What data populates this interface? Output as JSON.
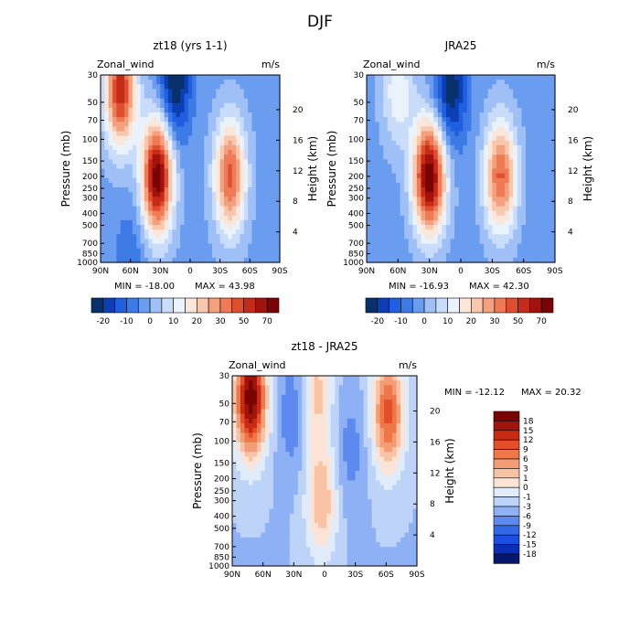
{
  "page": {
    "title": "DJF"
  },
  "colors": {
    "full_scale": [
      "#08306b",
      "#0b3fb3",
      "#1f5fe0",
      "#3d7ae6",
      "#6a9cf0",
      "#9fc0f6",
      "#c9dcfa",
      "#eaf2fc",
      "#fbe6da",
      "#f9c7ad",
      "#f5a07d",
      "#ef7a55",
      "#e04e30",
      "#c62a18",
      "#a3130d",
      "#7a0404"
    ],
    "diff_scale": [
      "#07166e",
      "#0a2fb5",
      "#1a4ee0",
      "#3168e8",
      "#5c8aef",
      "#8eb0f4",
      "#bed3f8",
      "#e1ecfb",
      "#fbe3d6",
      "#f8c2a5",
      "#f49c74",
      "#ee7649",
      "#e24f28",
      "#c72b14",
      "#a1140b",
      "#7a0303"
    ]
  },
  "chart_data": [
    {
      "type": "heatmap",
      "title": "zt18 (yrs 1-1)",
      "variable_label": "Zonal_wind",
      "units_label": "m/s",
      "ylabel": "Pressure (mb)",
      "y2label": "Height (km)",
      "x_ticks": [
        "90N",
        "60N",
        "30N",
        "0",
        "30S",
        "60S",
        "90S"
      ],
      "x_tick_lat": [
        90,
        60,
        30,
        0,
        -30,
        -60,
        -90
      ],
      "y_ticks": [
        "30",
        "50",
        "70",
        "100",
        "150",
        "200",
        "250",
        "300",
        "400",
        "500",
        "700",
        "850",
        "1000"
      ],
      "y_tick_p": [
        30,
        50,
        70,
        100,
        150,
        200,
        250,
        300,
        400,
        500,
        700,
        850,
        1000
      ],
      "y2_ticks": [
        "20",
        "16",
        "12",
        "8",
        "4"
      ],
      "y2_tick_km": [
        20,
        16,
        12,
        8,
        4
      ],
      "min_label": "MIN = -18.00",
      "max_label": "MAX =  43.98",
      "min": -18.0,
      "max": 43.98,
      "colorbar_levels": [
        "-20",
        "-10",
        "0",
        "10",
        "20",
        "30",
        "50",
        "70"
      ],
      "colorbar_level_values": [
        -20,
        -10,
        0,
        10,
        20,
        30,
        50,
        70
      ],
      "features": [
        {
          "lat": 33,
          "p": 200,
          "value": 43
        },
        {
          "lat": -40,
          "p": 200,
          "value": 30
        },
        {
          "lat": 70,
          "p": 40,
          "value": 35
        },
        {
          "lat": 60,
          "p": 1000,
          "value": -6
        },
        {
          "lat": 15,
          "p": 35,
          "value": -18
        }
      ]
    },
    {
      "type": "heatmap",
      "title": "JRA25",
      "variable_label": "Zonal_wind",
      "units_label": "m/s",
      "ylabel": "Pressure (mb)",
      "y2label": "Height (km)",
      "x_ticks": [
        "90N",
        "60N",
        "30N",
        "0",
        "30S",
        "60S",
        "90S"
      ],
      "x_tick_lat": [
        90,
        60,
        30,
        0,
        -30,
        -60,
        -90
      ],
      "y_ticks": [
        "30",
        "50",
        "70",
        "100",
        "150",
        "200",
        "250",
        "300",
        "400",
        "500",
        "700",
        "850",
        "1000"
      ],
      "y_tick_p": [
        30,
        50,
        70,
        100,
        150,
        200,
        250,
        300,
        400,
        500,
        700,
        850,
        1000
      ],
      "y2_ticks": [
        "20",
        "16",
        "12",
        "8",
        "4"
      ],
      "y2_tick_km": [
        20,
        16,
        12,
        8,
        4
      ],
      "min_label": "MIN = -16.93",
      "max_label": "MAX =  42.30",
      "min": -16.93,
      "max": 42.3,
      "colorbar_levels": [
        "-20",
        "-10",
        "0",
        "10",
        "20",
        "30",
        "50",
        "70"
      ],
      "colorbar_level_values": [
        -20,
        -10,
        0,
        10,
        20,
        30,
        50,
        70
      ],
      "features": [
        {
          "lat": 30,
          "p": 200,
          "value": 42
        },
        {
          "lat": -38,
          "p": 200,
          "value": 28
        },
        {
          "lat": 60,
          "p": 40,
          "value": 12
        },
        {
          "lat": 10,
          "p": 40,
          "value": -16
        }
      ]
    },
    {
      "type": "heatmap",
      "title": "zt18 - JRA25",
      "variable_label": "Zonal_wind",
      "units_label": "m/s",
      "ylabel": "Pressure (mb)",
      "y2label": "Height (km)",
      "x_ticks": [
        "90N",
        "60N",
        "30N",
        "0",
        "30S",
        "60S",
        "90S"
      ],
      "x_tick_lat": [
        90,
        60,
        30,
        0,
        -30,
        -60,
        -90
      ],
      "y_ticks": [
        "30",
        "50",
        "70",
        "100",
        "150",
        "200",
        "250",
        "300",
        "400",
        "500",
        "700",
        "850",
        "1000"
      ],
      "y_tick_p": [
        30,
        50,
        70,
        100,
        150,
        200,
        250,
        300,
        400,
        500,
        700,
        850,
        1000
      ],
      "y2_ticks": [
        "20",
        "16",
        "12",
        "8",
        "4"
      ],
      "y2_tick_km": [
        20,
        16,
        12,
        8,
        4
      ],
      "min_label": "MIN = -12.12",
      "max_label": "MAX =  20.32",
      "min": -12.12,
      "max": 20.32,
      "colorbar_levels": [
        "18",
        "15",
        "12",
        "9",
        "6",
        "3",
        "1",
        "0",
        "-1",
        "-3",
        "-6",
        "-9",
        "-12",
        "-15",
        "-18"
      ],
      "colorbar_level_values": [
        18,
        15,
        12,
        9,
        6,
        3,
        1,
        0,
        -1,
        -3,
        -6,
        -9,
        -12,
        -15,
        -18
      ],
      "features": [
        {
          "lat": 72,
          "p": 45,
          "value": 20
        },
        {
          "lat": -62,
          "p": 60,
          "value": 13
        },
        {
          "lat": 3,
          "p": 300,
          "value": 8
        },
        {
          "lat": 8,
          "p": 40,
          "value": 7
        },
        {
          "lat": 30,
          "p": 60,
          "value": -4
        },
        {
          "lat": -25,
          "p": 120,
          "value": -3
        }
      ]
    }
  ]
}
